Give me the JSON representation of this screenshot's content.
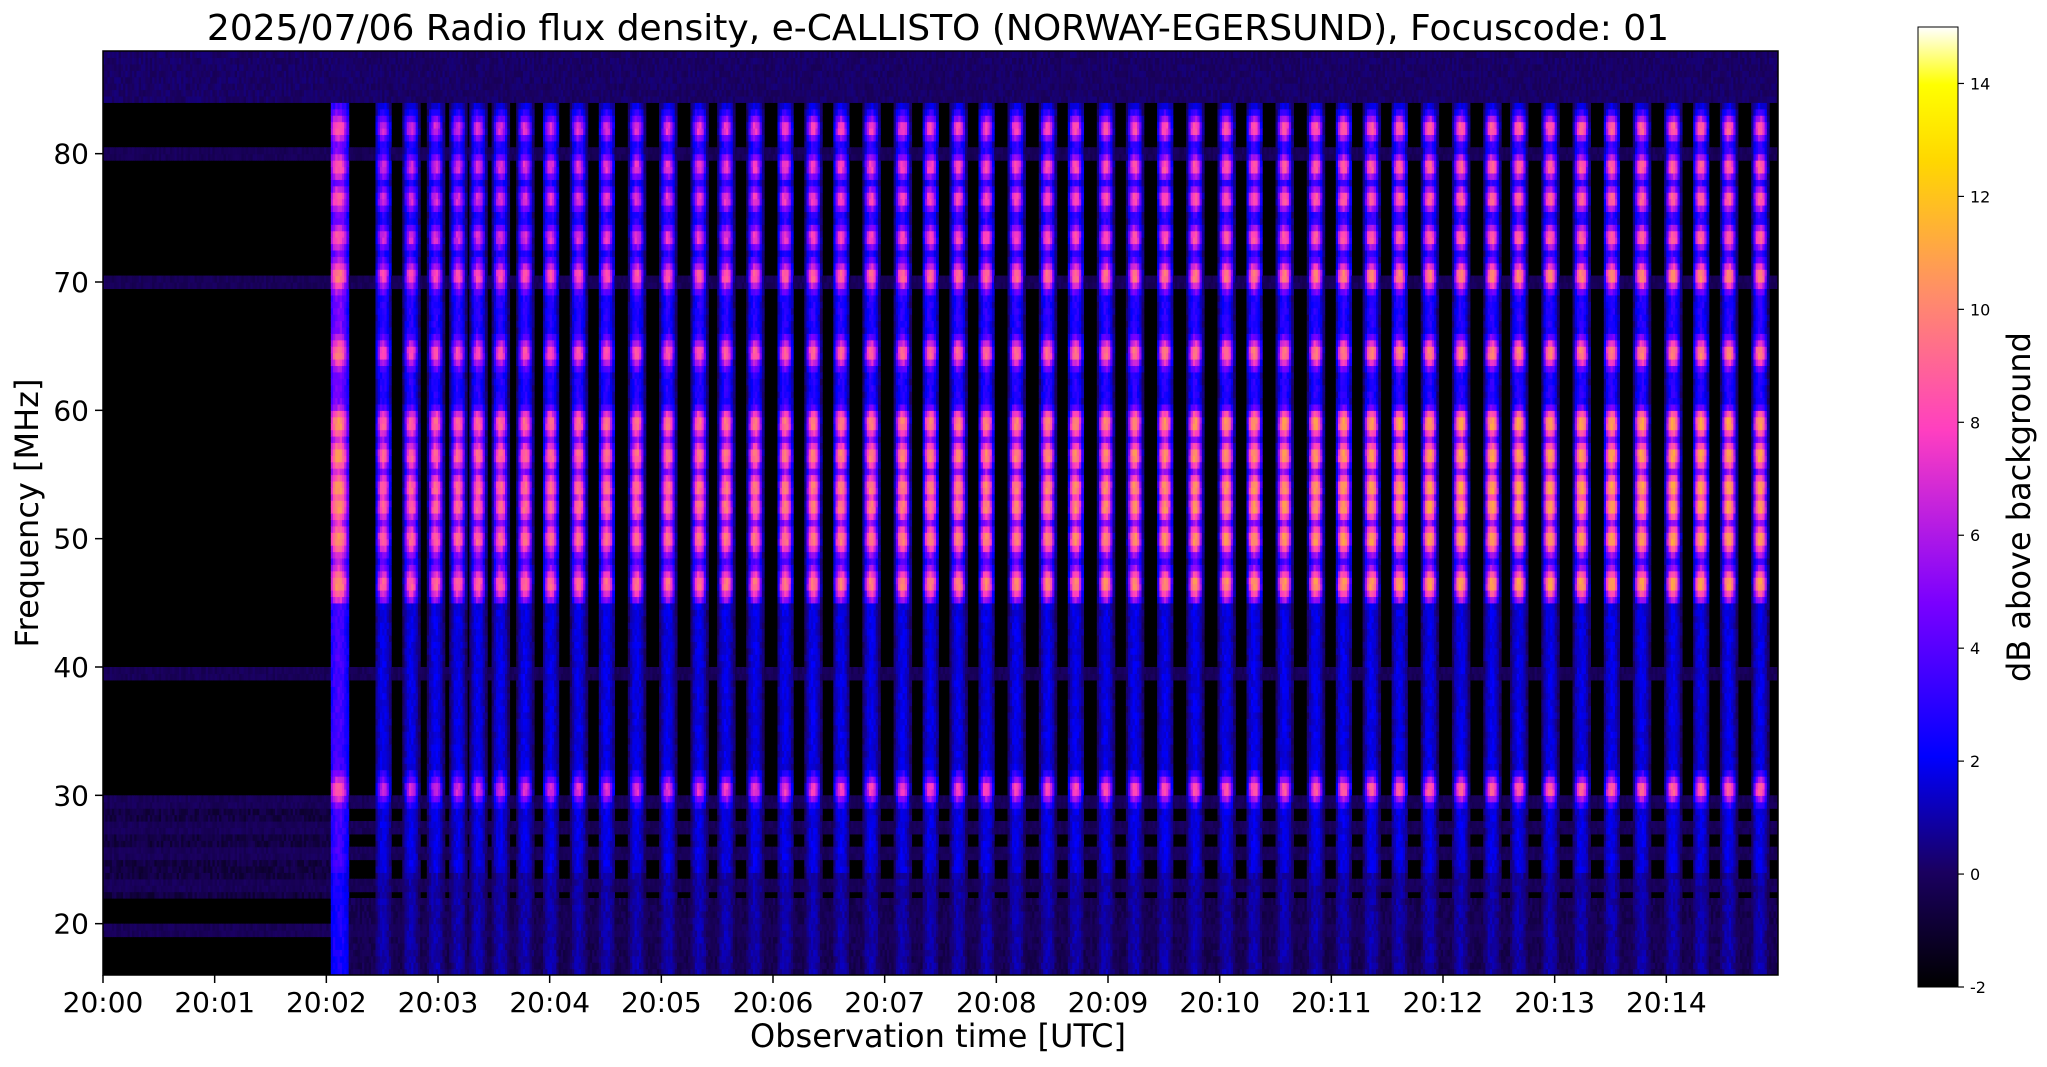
{
  "chart_data": {
    "type": "heatmap",
    "title": "2025/07/06  Radio flux density, e-CALLISTO (NORWAY-EGERSUND), Focuscode: 01",
    "xlabel": "Observation time [UTC]",
    "ylabel": "Frequency [MHz]",
    "colorbar_label": "dB above background",
    "x_ticks": [
      "20:00",
      "20:01",
      "20:02",
      "20:03",
      "20:04",
      "20:05",
      "20:06",
      "20:07",
      "20:08",
      "20:09",
      "20:10",
      "20:11",
      "20:12",
      "20:13",
      "20:14"
    ],
    "xlim_minutes": [
      0,
      15
    ],
    "y_ticks": [
      20,
      30,
      40,
      50,
      60,
      70,
      80
    ],
    "ylim": [
      16,
      88
    ],
    "colorbar_ticks": [
      -2,
      0,
      2,
      4,
      6,
      8,
      10,
      12,
      14
    ],
    "clim": [
      -2,
      15
    ],
    "colormap": [
      "#000000",
      "#1a0060",
      "#0000ff",
      "#7a00ff",
      "#ff3fc0",
      "#ff8c6a",
      "#ffd700",
      "#ffff00",
      "#ffffff"
    ],
    "quiet_interval_minutes": [
      0,
      2.05
    ],
    "burst_columns_minutes": [
      2.05,
      2.45,
      2.7,
      2.92,
      3.12,
      3.3,
      3.5,
      3.72,
      3.95,
      4.2,
      4.45,
      4.72,
      5.0,
      5.28,
      5.52,
      5.78,
      6.05,
      6.3,
      6.55,
      6.82,
      7.1,
      7.35,
      7.6,
      7.85,
      8.12,
      8.4,
      8.65,
      8.92,
      9.18,
      9.45,
      9.72,
      10.0,
      10.25,
      10.52,
      10.8,
      11.05,
      11.3,
      11.55,
      11.82,
      12.1,
      12.38,
      12.62,
      12.9,
      13.18,
      13.45,
      13.72,
      14.0,
      14.25,
      14.5,
      14.78
    ],
    "bright_bands_MHz": [
      30.5,
      46.5,
      50,
      52.5,
      54,
      56.5,
      59,
      64.5,
      70.5,
      73.5,
      76.5,
      79,
      82
    ],
    "interference_lines_MHz": [
      19.5,
      23,
      25.5,
      27.5,
      29.5,
      39.5,
      70,
      80
    ]
  }
}
